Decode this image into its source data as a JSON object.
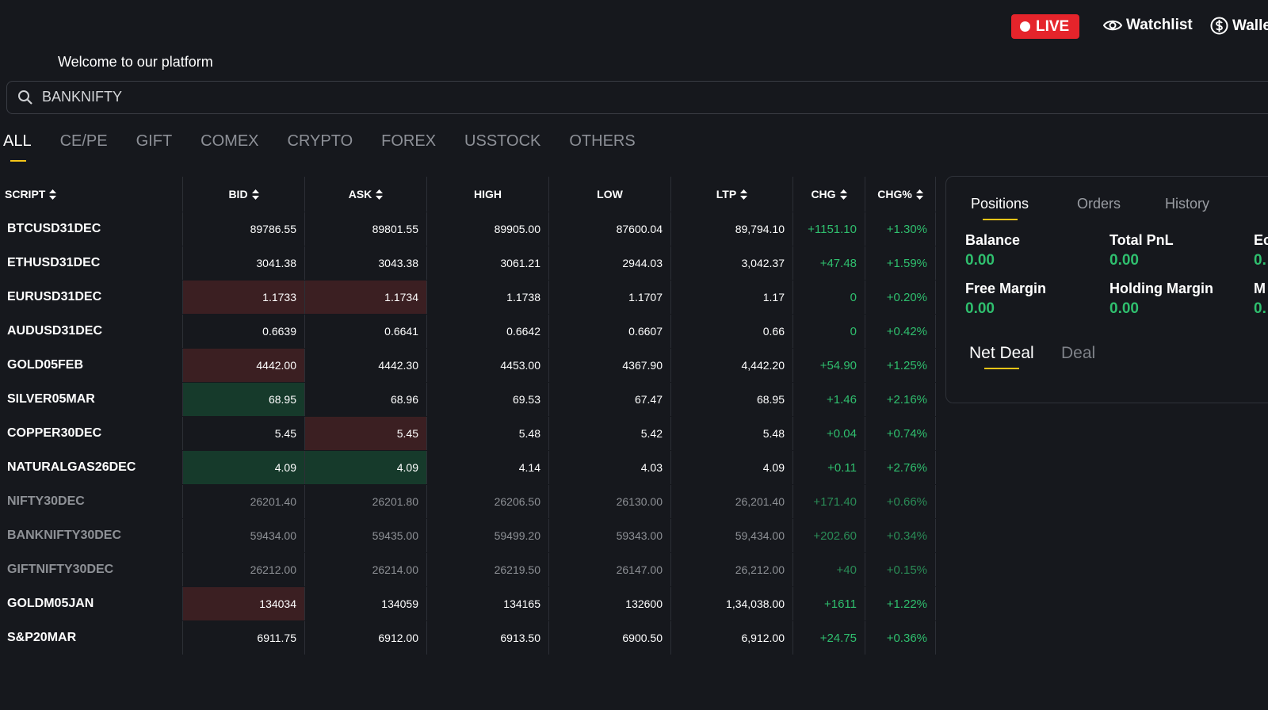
{
  "header": {
    "live": "LIVE",
    "watchlist": "Watchlist",
    "wallet": "Walle",
    "welcome": "Welcome to our platform"
  },
  "search": {
    "value": "BANKNIFTY"
  },
  "tabs": {
    "items": [
      "ALL",
      "CE/PE",
      "GIFT",
      "COMEX",
      "CRYPTO",
      "FOREX",
      "USSTOCK",
      "OTHERS"
    ],
    "active": 0
  },
  "table": {
    "headers": [
      {
        "label": "SCRIPT",
        "sort": true
      },
      {
        "label": "BID",
        "sort": true
      },
      {
        "label": "ASK",
        "sort": true
      },
      {
        "label": "HIGH",
        "sort": false
      },
      {
        "label": "LOW",
        "sort": false
      },
      {
        "label": "LTP",
        "sort": true
      },
      {
        "label": "CHG",
        "sort": true
      },
      {
        "label": "CHG%",
        "sort": true
      }
    ],
    "rows": [
      {
        "cells": [
          "BTCUSD31DEC",
          "89786.55",
          "89801.55",
          "89905.00",
          "87600.04",
          "89,794.10",
          "+1151.10",
          "+1.30%"
        ]
      },
      {
        "cells": [
          "ETHUSD31DEC",
          "3041.38",
          "3043.38",
          "3061.21",
          "2944.03",
          "3,042.37",
          "+47.48",
          "+1.59%"
        ]
      },
      {
        "cells": [
          "EURUSD31DEC",
          "1.1733",
          "1.1734",
          "1.1738",
          "1.1707",
          "1.17",
          "0",
          "+0.20%"
        ],
        "bid": "red",
        "ask": "red"
      },
      {
        "cells": [
          "AUDUSD31DEC",
          "0.6639",
          "0.6641",
          "0.6642",
          "0.6607",
          "0.66",
          "0",
          "+0.42%"
        ]
      },
      {
        "cells": [
          "GOLD05FEB",
          "4442.00",
          "4442.30",
          "4453.00",
          "4367.90",
          "4,442.20",
          "+54.90",
          "+1.25%"
        ],
        "bid": "red"
      },
      {
        "cells": [
          "SILVER05MAR",
          "68.95",
          "68.96",
          "69.53",
          "67.47",
          "68.95",
          "+1.46",
          "+2.16%"
        ],
        "bid": "green"
      },
      {
        "cells": [
          "COPPER30DEC",
          "5.45",
          "5.45",
          "5.48",
          "5.42",
          "5.48",
          "+0.04",
          "+0.74%"
        ],
        "ask": "red"
      },
      {
        "cells": [
          "NATURALGAS26DEC",
          "4.09",
          "4.09",
          "4.14",
          "4.03",
          "4.09",
          "+0.11",
          "+2.76%"
        ],
        "bid": "green",
        "ask": "green"
      },
      {
        "cells": [
          "NIFTY30DEC",
          "26201.40",
          "26201.80",
          "26206.50",
          "26130.00",
          "26,201.40",
          "+171.40",
          "+0.66%"
        ],
        "muted": true
      },
      {
        "cells": [
          "BANKNIFTY30DEC",
          "59434.00",
          "59435.00",
          "59499.20",
          "59343.00",
          "59,434.00",
          "+202.60",
          "+0.34%"
        ],
        "muted": true
      },
      {
        "cells": [
          "GIFTNIFTY30DEC",
          "26212.00",
          "26214.00",
          "26219.50",
          "26147.00",
          "26,212.00",
          "+40",
          "+0.15%"
        ],
        "muted": true
      },
      {
        "cells": [
          "GOLDM05JAN",
          "134034",
          "134059",
          "134165",
          "132600",
          "1,34,038.00",
          "+1611",
          "+1.22%"
        ],
        "bid": "red"
      },
      {
        "cells": [
          "S&P20MAR",
          "6911.75",
          "6912.00",
          "6913.50",
          "6900.50",
          "6,912.00",
          "+24.75",
          "+0.36%"
        ]
      }
    ]
  },
  "panel": {
    "tabs": {
      "items": [
        "Positions",
        "Orders",
        "History"
      ],
      "active": 0
    },
    "stats": [
      {
        "label": "Balance",
        "value": "0.00"
      },
      {
        "label": "Total PnL",
        "value": "0.00"
      },
      {
        "label": "Ec",
        "value": "0."
      },
      {
        "label": "Free Margin",
        "value": "0.00"
      },
      {
        "label": "Holding Margin",
        "value": "0.00"
      },
      {
        "label": "M",
        "value": "0."
      }
    ],
    "subtabs": {
      "items": [
        "Net Deal",
        "Deal"
      ],
      "active": 0
    }
  }
}
